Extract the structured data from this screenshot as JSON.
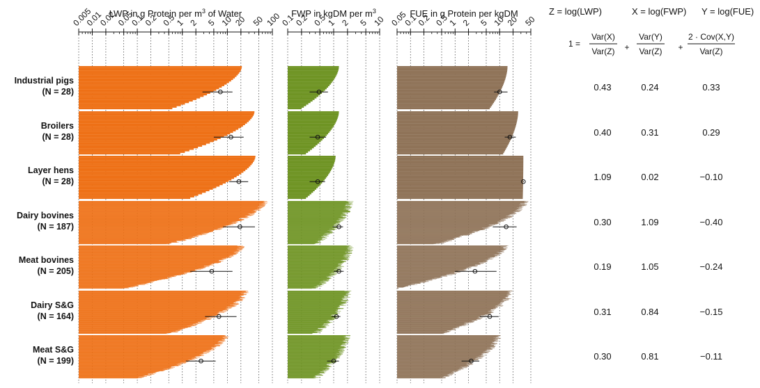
{
  "chart_data": {
    "type": "bar",
    "panels": [
      {
        "key": "lwp",
        "title": "LWP in g Protein per m",
        "title_sup": "3",
        "title_tail": " of Water",
        "color": "#EE7117",
        "scale": "log",
        "xlim": [
          0.005,
          100
        ],
        "tick_labels": [
          "0.005",
          "0.01",
          "0.02",
          "0.05",
          "0.1",
          "0.2",
          "0.5",
          "1",
          "2",
          "5",
          "10",
          "20",
          "50",
          "100"
        ],
        "groups": [
          {
            "max": 21,
            "min": 0.6,
            "mean": 7,
            "lo": 2.8,
            "hi": 13
          },
          {
            "max": 40,
            "min": 0.9,
            "mean": 12,
            "lo": 5,
            "hi": 23
          },
          {
            "max": 42,
            "min": 1.5,
            "mean": 18,
            "lo": 11,
            "hi": 29
          },
          {
            "max": 65,
            "min": 0.5,
            "mean": 19,
            "lo": 8,
            "hi": 41
          },
          {
            "max": 20,
            "min": 0.05,
            "mean": 4.5,
            "lo": 1.5,
            "hi": 13
          },
          {
            "max": 25,
            "min": 0.5,
            "mean": 6.5,
            "lo": 3.2,
            "hi": 16
          },
          {
            "max": 9,
            "min": 0.1,
            "mean": 2.6,
            "lo": 1.2,
            "hi": 5.5
          }
        ]
      },
      {
        "key": "fwp",
        "title": "FWP in kgDM per m",
        "title_sup": "3",
        "title_tail": "",
        "color": "#6F9424",
        "scale": "log",
        "xlim": [
          0.1,
          10
        ],
        "tick_labels": [
          "0.1",
          "0.2",
          "0.5",
          "1",
          "2",
          "5",
          "10"
        ],
        "groups": [
          {
            "max": 1.3,
            "min": 0.2,
            "mean": 0.48,
            "lo": 0.3,
            "hi": 0.75
          },
          {
            "max": 1.3,
            "min": 0.25,
            "mean": 0.45,
            "lo": 0.3,
            "hi": 0.68
          },
          {
            "max": 1.1,
            "min": 0.25,
            "mean": 0.45,
            "lo": 0.3,
            "hi": 0.65
          },
          {
            "max": 2.2,
            "min": 0.4,
            "mean": 1.3,
            "lo": 0.95,
            "hi": 1.6
          },
          {
            "max": 2.3,
            "min": 0.4,
            "mean": 1.3,
            "lo": 1.0,
            "hi": 1.65
          },
          {
            "max": 2.0,
            "min": 0.4,
            "mean": 1.15,
            "lo": 0.9,
            "hi": 1.4
          },
          {
            "max": 1.9,
            "min": 0.4,
            "mean": 1.0,
            "lo": 0.72,
            "hi": 1.3
          }
        ]
      },
      {
        "key": "fue",
        "title": "FUE in g Protein per kgDM",
        "title_sup": "",
        "title_tail": "",
        "color": "#8F7358",
        "scale": "log",
        "xlim": [
          0.05,
          50
        ],
        "tick_labels": [
          "0.05",
          "0.1",
          "0.2",
          "0.5",
          "1",
          "2",
          "5",
          "10",
          "20",
          "50"
        ],
        "groups": [
          {
            "max": 15,
            "min": 6,
            "mean": 10,
            "lo": 7.5,
            "hi": 15
          },
          {
            "max": 26,
            "min": 12,
            "mean": 17,
            "lo": 13,
            "hi": 23
          },
          {
            "max": 34,
            "min": 33,
            "mean": 34,
            "lo": 33,
            "hi": 35
          },
          {
            "max": 36,
            "min": 0.4,
            "mean": 14,
            "lo": 7,
            "hi": 24
          },
          {
            "max": 13,
            "min": 0.05,
            "mean": 2.8,
            "lo": 1.0,
            "hi": 8.5
          },
          {
            "max": 18,
            "min": 0.5,
            "mean": 6,
            "lo": 3.6,
            "hi": 9.5
          },
          {
            "max": 9,
            "min": 0.5,
            "mean": 2.3,
            "lo": 1.4,
            "hi": 3.5
          }
        ]
      }
    ],
    "categories": [
      {
        "name": "Industrial pigs",
        "n": "(N = 28)"
      },
      {
        "name": "Broilers",
        "n": "(N = 28)"
      },
      {
        "name": "Layer hens",
        "n": "(N = 28)"
      },
      {
        "name": "Dairy bovines",
        "n": "(N = 187)"
      },
      {
        "name": "Meat bovines",
        "n": "(N = 205)"
      },
      {
        "name": "Dairy S&G",
        "n": "(N = 164)"
      },
      {
        "name": "Meat S&G",
        "n": "(N = 199)"
      }
    ],
    "definitions": [
      "Z = log(LWP)",
      "X = log(FWP)",
      "Y = log(FUE)"
    ],
    "decomposition": {
      "lhs": "1 =",
      "terms": [
        {
          "num": "Var(X)",
          "den": "Var(Z)"
        },
        {
          "num": "Var(Y)",
          "den": "Var(Z)"
        },
        {
          "num": "2 · Cov(X,Y)",
          "den": "Var(Z)"
        }
      ],
      "plus": "+"
    },
    "table": {
      "columns": [
        "Var(X)/Var(Z)",
        "Var(Y)/Var(Z)",
        "2·Cov(X,Y)/Var(Z)"
      ],
      "rows": [
        [
          "0.43",
          "0.24",
          "0.33"
        ],
        [
          "0.40",
          "0.31",
          "0.29"
        ],
        [
          "1.09",
          "0.02",
          "−0.10"
        ],
        [
          "0.30",
          "1.09",
          "−0.40"
        ],
        [
          "0.19",
          "1.05",
          "−0.24"
        ],
        [
          "0.31",
          "0.84",
          "−0.15"
        ],
        [
          "0.30",
          "0.81",
          "−0.11"
        ]
      ]
    }
  }
}
